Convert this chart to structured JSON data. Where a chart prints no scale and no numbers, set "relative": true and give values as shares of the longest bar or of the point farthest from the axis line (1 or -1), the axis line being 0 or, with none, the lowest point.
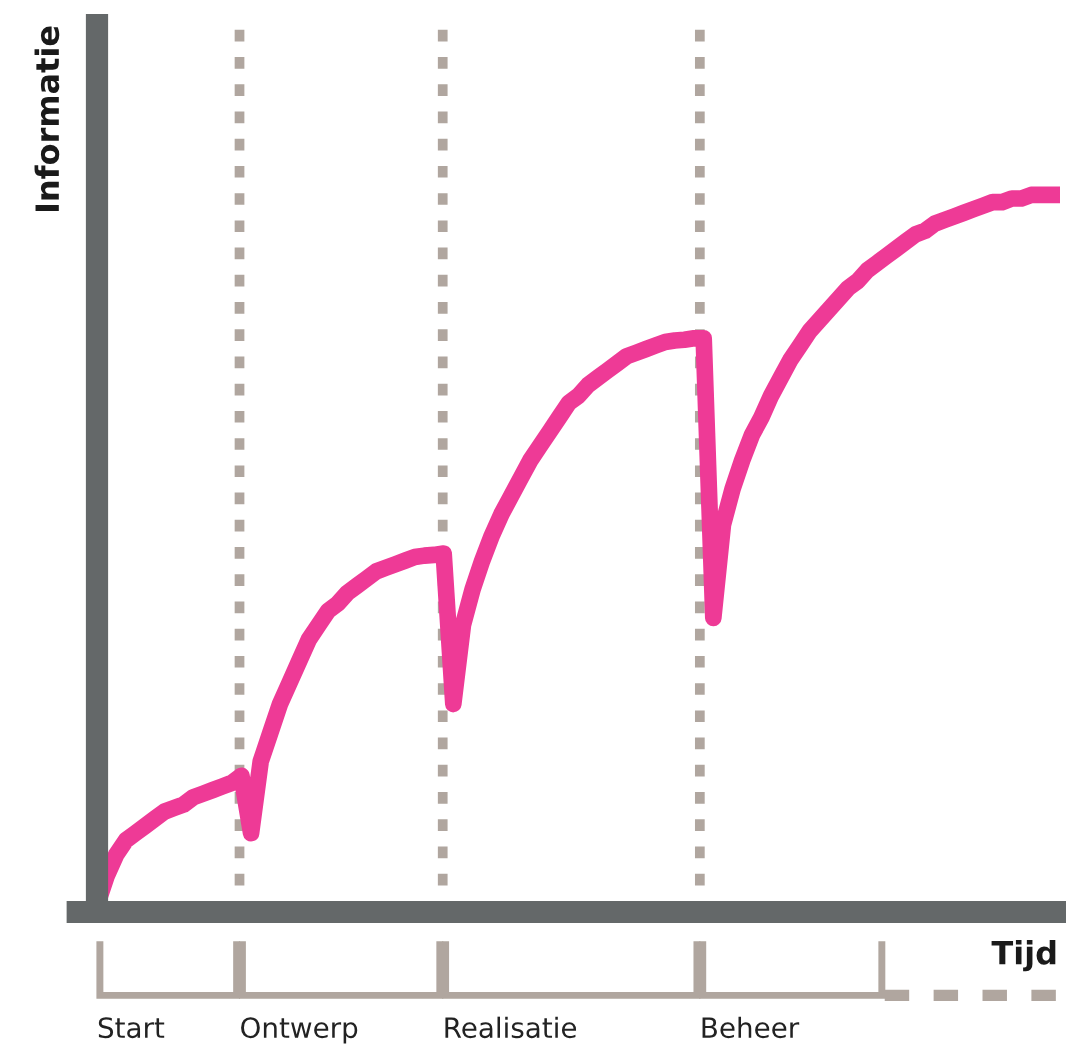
{
  "chart_data": {
    "type": "line",
    "relative": true,
    "xlabel": "Tijd",
    "ylabel": "Informatie",
    "categories": [
      null,
      null,
      null,
      null,
      null,
      null,
      null,
      null,
      null,
      null,
      null,
      null,
      null,
      null,
      null,
      null,
      null,
      null,
      null,
      null,
      null,
      null,
      null,
      null,
      null,
      null,
      null,
      null,
      null,
      null,
      null,
      null,
      null,
      null,
      null,
      null,
      null,
      null,
      null,
      null,
      null,
      null,
      null,
      null,
      null,
      null,
      null,
      null,
      null,
      null,
      null,
      null,
      null,
      null,
      null,
      null,
      null,
      null,
      null,
      null,
      null,
      null,
      null,
      null,
      null,
      null,
      null,
      null,
      null,
      null,
      null,
      null,
      null,
      null,
      null,
      null,
      null,
      null,
      null,
      null,
      null,
      null,
      null,
      null,
      null,
      null,
      null,
      null,
      null,
      null,
      null,
      null,
      null,
      null,
      null,
      null,
      null,
      null,
      null,
      null,
      null
    ],
    "series": [
      {
        "color": "#ee3a96",
        "line_style": "solid",
        "values": [
          0.01,
          0.05,
          0.08,
          0.1,
          0.11,
          0.12,
          0.13,
          0.14,
          0.145,
          0.15,
          0.16,
          0.165,
          0.17,
          0.175,
          0.18,
          0.19,
          0.11,
          0.21,
          0.25,
          0.29,
          0.32,
          0.35,
          0.38,
          0.4,
          0.42,
          0.43,
          0.445,
          0.455,
          0.465,
          0.475,
          0.48,
          0.485,
          0.49,
          0.495,
          0.497,
          0.498,
          0.5,
          0.29,
          0.4,
          0.45,
          0.49,
          0.525,
          0.555,
          0.58,
          0.605,
          0.63,
          0.65,
          0.67,
          0.69,
          0.71,
          0.72,
          0.735,
          0.745,
          0.755,
          0.765,
          0.775,
          0.78,
          0.785,
          0.79,
          0.795,
          0.797,
          0.798,
          0.8,
          0.8,
          0.41,
          0.54,
          0.59,
          0.63,
          0.665,
          0.69,
          0.72,
          0.745,
          0.77,
          0.79,
          0.81,
          0.825,
          0.84,
          0.855,
          0.87,
          0.88,
          0.895,
          0.905,
          0.915,
          0.925,
          0.935,
          0.945,
          0.95,
          0.96,
          0.965,
          0.97,
          0.975,
          0.98,
          0.985,
          0.99,
          0.99,
          0.995,
          0.995,
          1.0,
          1.0,
          1.0,
          1.0
        ]
      }
    ],
    "annotations": [
      "Start",
      "Ontwerp",
      "Realisatie",
      "Beheer"
    ]
  }
}
